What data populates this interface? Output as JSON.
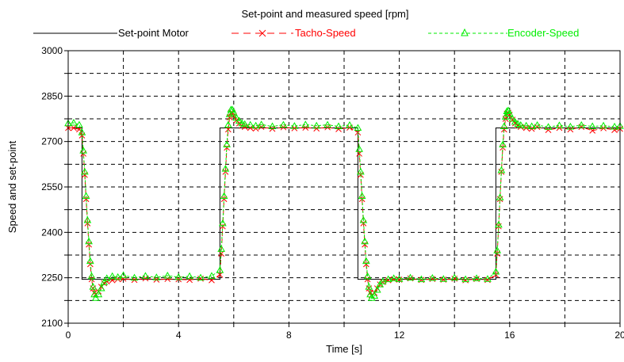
{
  "chart_data": {
    "type": "line",
    "title": "Set-point and measured speed [rpm]",
    "xlabel": "Time [s]",
    "ylabel": "Speed and set-point",
    "xlim": [
      0,
      20
    ],
    "ylim": [
      2100,
      3000
    ],
    "xticks": [
      0,
      4,
      8,
      12,
      16,
      20
    ],
    "yticks": [
      2100,
      2250,
      2400,
      2550,
      2700,
      2850,
      3000
    ],
    "xgrid": [
      0,
      2,
      4,
      6,
      8,
      10,
      12,
      14,
      16,
      18,
      20
    ],
    "ygrid": [
      2100,
      2175,
      2250,
      2325,
      2400,
      2475,
      2550,
      2625,
      2700,
      2775,
      2850,
      2925,
      3000
    ],
    "grid": true,
    "legend_position": "top",
    "series": [
      {
        "name": "Set-point Motor",
        "color": "#000000",
        "line_style": "solid",
        "marker": "none",
        "x": [
          0,
          0.5,
          0.5,
          5.5,
          5.5,
          10.5,
          10.5,
          15.5,
          15.5,
          20
        ],
        "y": [
          2745,
          2745,
          2245,
          2245,
          2745,
          2745,
          2245,
          2245,
          2745,
          2745
        ]
      },
      {
        "name": "Tacho-Speed",
        "color": "#ff0000",
        "line_style": "dashed",
        "marker": "x",
        "x": [
          0,
          0.2,
          0.4,
          0.5,
          0.55,
          0.6,
          0.65,
          0.7,
          0.75,
          0.8,
          0.85,
          0.9,
          0.95,
          1.0,
          1.1,
          1.2,
          1.3,
          1.4,
          1.6,
          1.8,
          2.0,
          2.4,
          2.8,
          3.2,
          3.6,
          4.0,
          4.4,
          4.8,
          5.2,
          5.5,
          5.55,
          5.6,
          5.65,
          5.7,
          5.75,
          5.8,
          5.85,
          5.9,
          5.95,
          6.0,
          6.1,
          6.2,
          6.3,
          6.4,
          6.6,
          6.8,
          7.0,
          7.4,
          7.8,
          8.2,
          8.6,
          9.0,
          9.4,
          9.8,
          10.2,
          10.5,
          10.55,
          10.6,
          10.65,
          10.7,
          10.75,
          10.8,
          10.85,
          10.9,
          10.95,
          11.0,
          11.1,
          11.2,
          11.3,
          11.4,
          11.6,
          11.8,
          12.0,
          12.4,
          12.8,
          13.2,
          13.6,
          14.0,
          14.4,
          14.8,
          15.2,
          15.5,
          15.55,
          15.6,
          15.65,
          15.7,
          15.75,
          15.8,
          15.85,
          15.9,
          15.95,
          16.0,
          16.1,
          16.2,
          16.3,
          16.4,
          16.6,
          16.8,
          17.0,
          17.4,
          17.8,
          18.2,
          18.6,
          19.0,
          19.4,
          19.8,
          20.0
        ],
        "y": [
          2745,
          2745,
          2740,
          2720,
          2660,
          2590,
          2510,
          2430,
          2360,
          2295,
          2245,
          2215,
          2200,
          2195,
          2205,
          2220,
          2232,
          2238,
          2242,
          2245,
          2247,
          2243,
          2248,
          2244,
          2246,
          2245,
          2243,
          2247,
          2242,
          2260,
          2330,
          2420,
          2510,
          2600,
          2680,
          2740,
          2780,
          2795,
          2795,
          2785,
          2770,
          2760,
          2752,
          2748,
          2745,
          2743,
          2748,
          2742,
          2747,
          2744,
          2746,
          2743,
          2747,
          2741,
          2746,
          2730,
          2660,
          2590,
          2510,
          2430,
          2360,
          2295,
          2245,
          2215,
          2200,
          2192,
          2200,
          2215,
          2228,
          2236,
          2242,
          2245,
          2244,
          2248,
          2243,
          2246,
          2244,
          2247,
          2242,
          2246,
          2243,
          2260,
          2330,
          2420,
          2510,
          2600,
          2680,
          2740,
          2775,
          2792,
          2795,
          2788,
          2772,
          2760,
          2753,
          2748,
          2745,
          2742,
          2748,
          2738,
          2745,
          2740,
          2748,
          2736,
          2744,
          2738,
          2742
        ]
      },
      {
        "name": "Encoder-Speed",
        "color": "#00ee00",
        "line_style": "dashed",
        "marker": "triangle",
        "x": [
          0,
          0.2,
          0.4,
          0.5,
          0.55,
          0.6,
          0.65,
          0.7,
          0.75,
          0.8,
          0.85,
          0.9,
          0.95,
          1.0,
          1.1,
          1.2,
          1.3,
          1.4,
          1.6,
          1.8,
          2.0,
          2.4,
          2.8,
          3.2,
          3.6,
          4.0,
          4.4,
          4.8,
          5.2,
          5.5,
          5.55,
          5.6,
          5.65,
          5.7,
          5.75,
          5.8,
          5.85,
          5.9,
          5.95,
          6.0,
          6.1,
          6.2,
          6.3,
          6.4,
          6.6,
          6.8,
          7.0,
          7.4,
          7.8,
          8.2,
          8.6,
          9.0,
          9.4,
          9.8,
          10.2,
          10.5,
          10.55,
          10.6,
          10.65,
          10.7,
          10.75,
          10.8,
          10.85,
          10.9,
          10.95,
          11.0,
          11.1,
          11.2,
          11.3,
          11.4,
          11.6,
          11.8,
          12.0,
          12.4,
          12.8,
          13.2,
          13.6,
          14.0,
          14.4,
          14.8,
          15.2,
          15.5,
          15.55,
          15.6,
          15.65,
          15.7,
          15.75,
          15.8,
          15.85,
          15.9,
          15.95,
          16.0,
          16.1,
          16.2,
          16.3,
          16.4,
          16.6,
          16.8,
          17.0,
          17.4,
          17.8,
          18.2,
          18.6,
          19.0,
          19.4,
          19.8,
          20.0
        ],
        "y": [
          2760,
          2762,
          2755,
          2730,
          2670,
          2600,
          2520,
          2440,
          2370,
          2305,
          2255,
          2220,
          2195,
          2183,
          2195,
          2215,
          2235,
          2248,
          2255,
          2252,
          2258,
          2250,
          2256,
          2251,
          2257,
          2252,
          2255,
          2250,
          2256,
          2275,
          2345,
          2430,
          2520,
          2610,
          2690,
          2755,
          2790,
          2805,
          2805,
          2795,
          2778,
          2768,
          2760,
          2757,
          2755,
          2752,
          2756,
          2750,
          2755,
          2751,
          2756,
          2752,
          2755,
          2750,
          2754,
          2745,
          2675,
          2600,
          2520,
          2440,
          2370,
          2305,
          2255,
          2220,
          2195,
          2183,
          2190,
          2210,
          2228,
          2238,
          2245,
          2248,
          2246,
          2250,
          2245,
          2249,
          2246,
          2250,
          2245,
          2248,
          2246,
          2270,
          2340,
          2425,
          2515,
          2605,
          2690,
          2750,
          2782,
          2800,
          2802,
          2792,
          2775,
          2765,
          2758,
          2754,
          2752,
          2750,
          2754,
          2748,
          2753,
          2749,
          2754,
          2750,
          2752,
          2749,
          2751
        ]
      }
    ]
  }
}
